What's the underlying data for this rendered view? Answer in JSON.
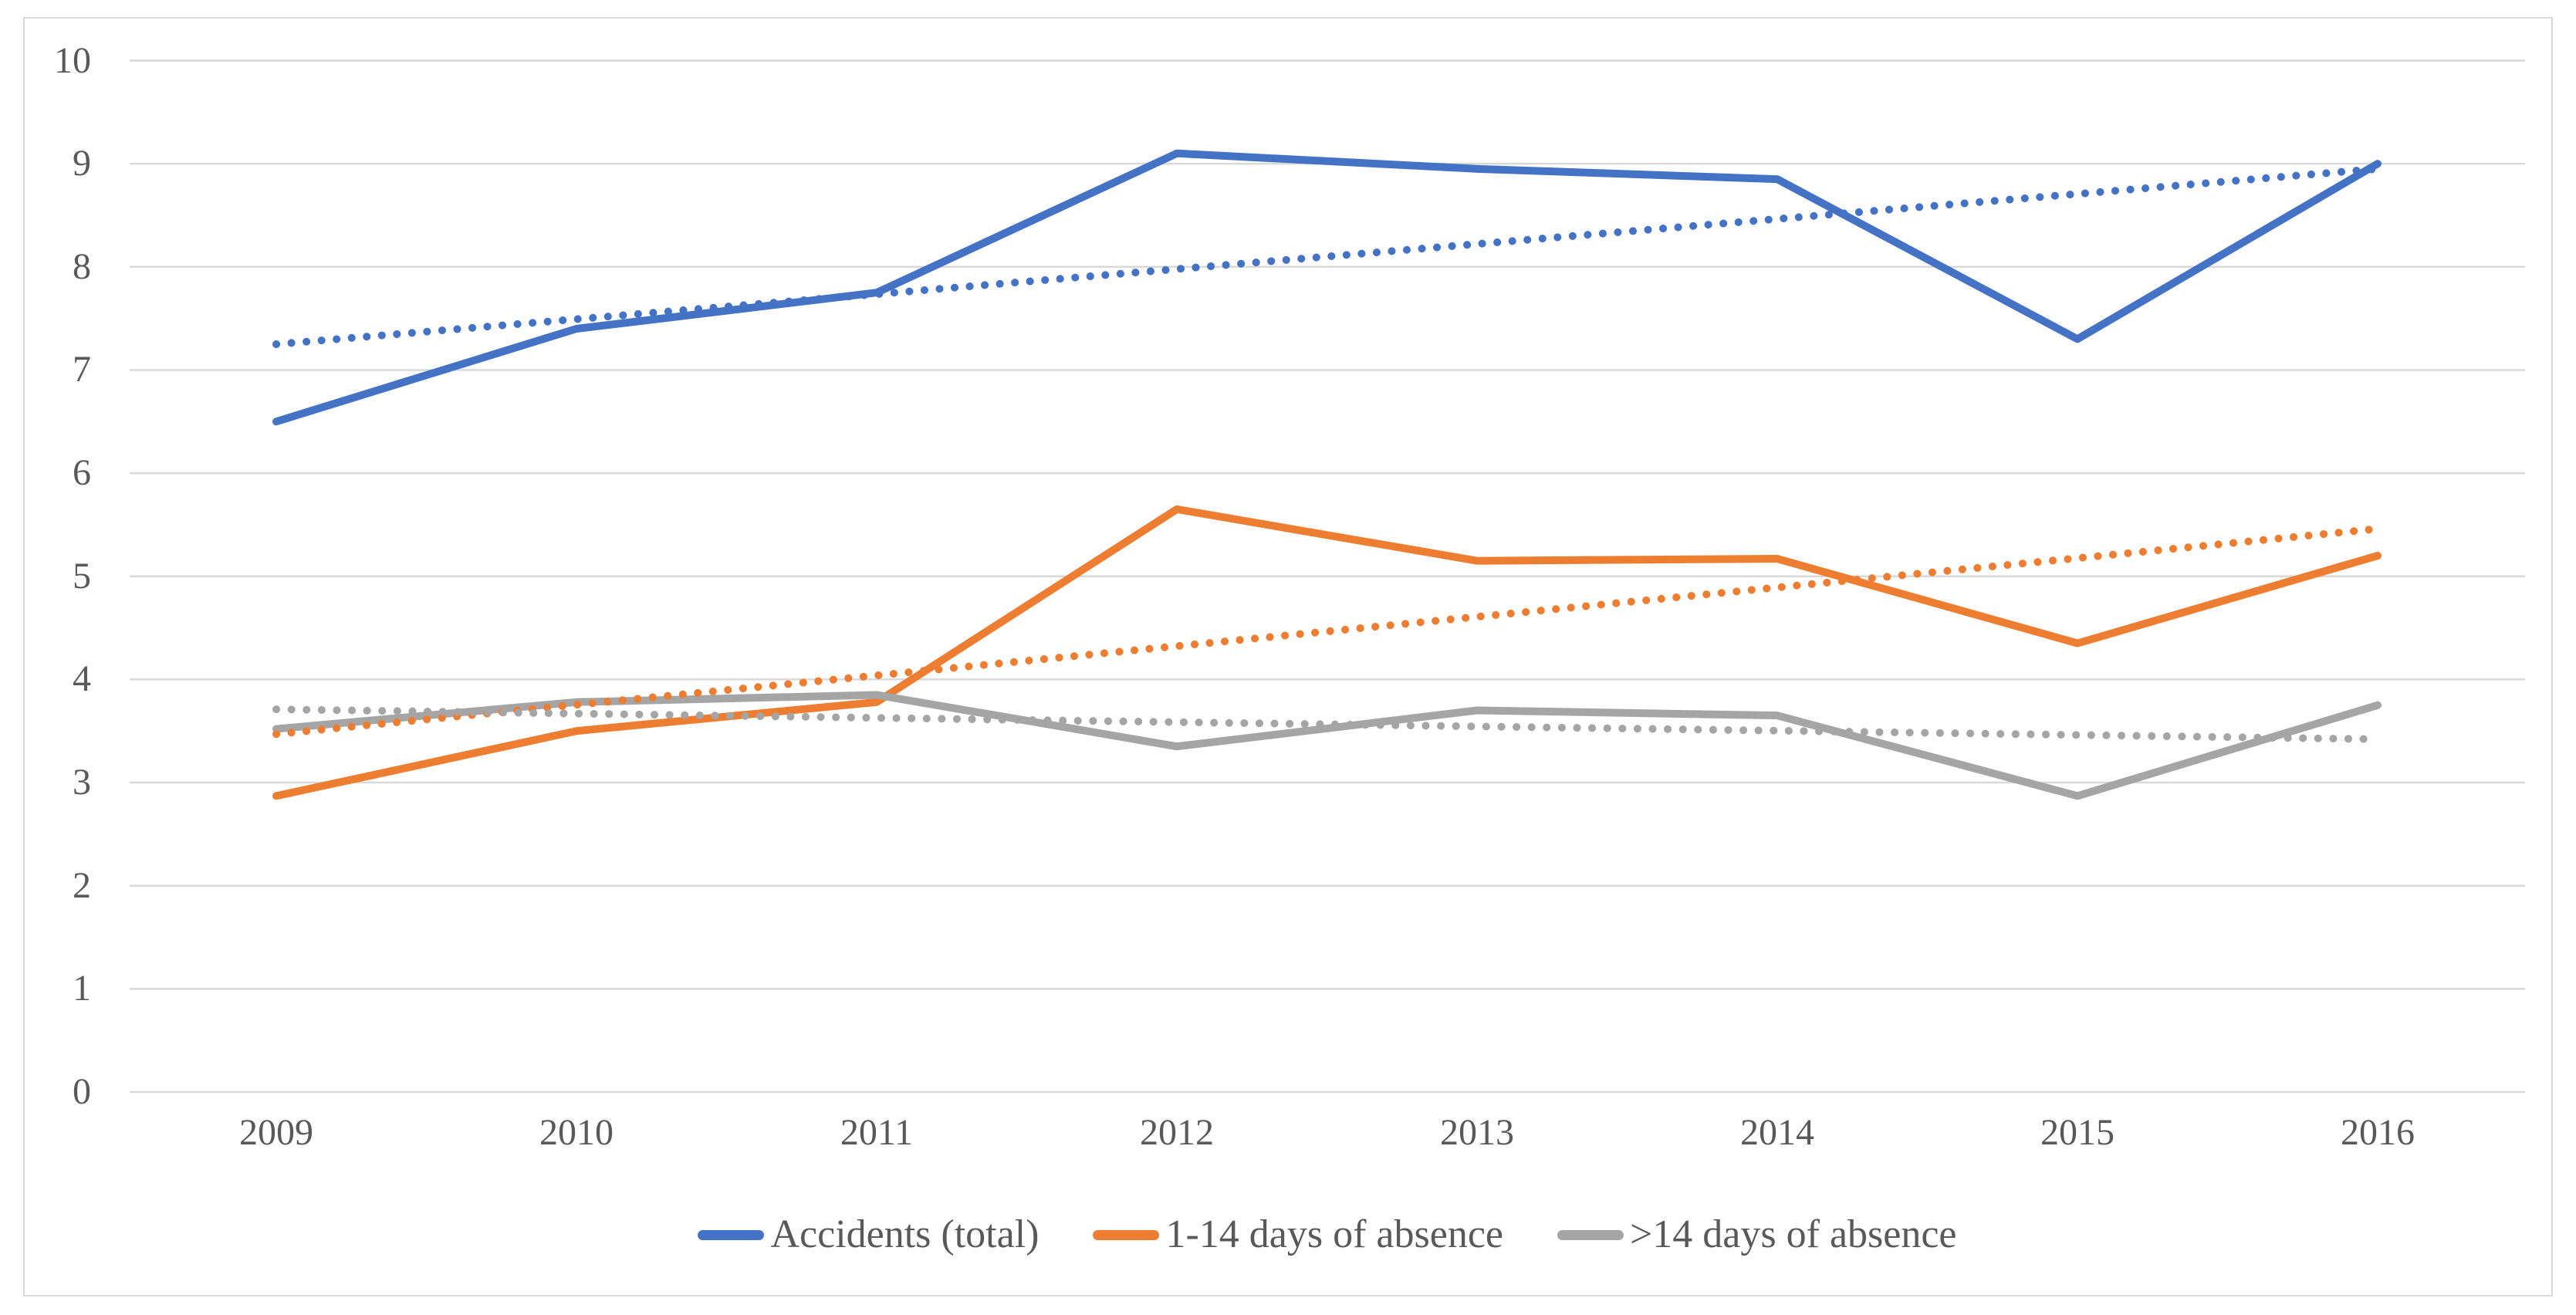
{
  "figure": {
    "background": "#ffffff",
    "border_color": "#d9d9d9",
    "gridline_color": "#d9d9d9",
    "tick_label_color": "#595959"
  },
  "axes": {
    "y_ticks": [
      "0",
      "1",
      "2",
      "3",
      "4",
      "5",
      "6",
      "7",
      "8",
      "9",
      "10"
    ],
    "x_ticks": [
      "2009",
      "2010",
      "2011",
      "2012",
      "2013",
      "2014",
      "2015",
      "2016"
    ]
  },
  "chart_data": {
    "type": "line",
    "title": "",
    "xlabel": "",
    "ylabel": "",
    "x": [
      2009,
      2010,
      2011,
      2012,
      2013,
      2014,
      2015,
      2016
    ],
    "ylim": [
      0,
      10
    ],
    "ytick_step": 1,
    "grid": true,
    "legend_position": "bottom",
    "series": [
      {
        "name": "Accidents (total)",
        "color": "#4472C4",
        "style": "solid",
        "values": [
          6.5,
          7.4,
          7.75,
          9.1,
          8.95,
          8.85,
          7.3,
          9.0
        ],
        "trendline": {
          "style": "dotted",
          "start": 7.25,
          "end": 8.95
        }
      },
      {
        "name": "1-14 days of absence",
        "color": "#ED7D31",
        "style": "solid",
        "values": [
          2.87,
          3.5,
          3.78,
          5.65,
          5.15,
          5.17,
          4.35,
          5.2
        ],
        "trendline": {
          "style": "dotted",
          "start": 3.47,
          "end": 5.46
        }
      },
      {
        "name": ">14 days of absence",
        "color": "#A5A5A5",
        "style": "solid",
        "values": [
          3.52,
          3.78,
          3.85,
          3.35,
          3.7,
          3.65,
          2.87,
          3.75
        ],
        "trendline": {
          "style": "dotted",
          "start": 3.71,
          "end": 3.42
        }
      }
    ]
  },
  "legend": {
    "items": [
      {
        "label": "Accidents (total)",
        "color": "#4472C4"
      },
      {
        "label": "1-14 days of absence",
        "color": "#ED7D31"
      },
      {
        "label": ">14 days of absence",
        "color": "#A5A5A5"
      }
    ]
  }
}
